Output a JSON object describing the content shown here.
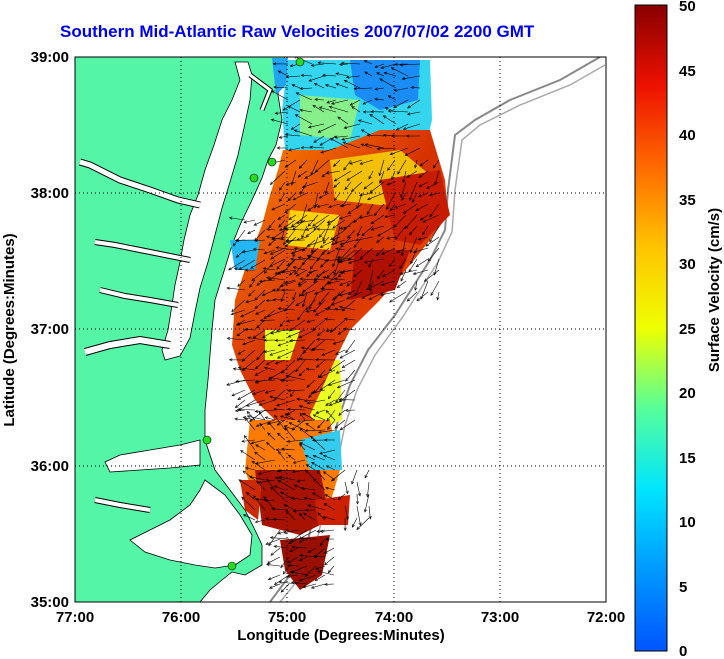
{
  "title": "Southern Mid-Atlantic Raw Velocities 2007/07/02 2200 GMT",
  "x_axis": {
    "label": "Longitude (Degrees:Minutes)",
    "ticks": [
      "77:00",
      "76:00",
      "75:00",
      "74:00",
      "73:00",
      "72:00"
    ]
  },
  "y_axis": {
    "label": "Latitude (Degrees:Minutes)",
    "ticks": [
      "39:00",
      "38:00",
      "37:00",
      "36:00",
      "35:00"
    ]
  },
  "colorbar": {
    "label": "Surface Velocity (cm/s)",
    "ticks": [
      "50",
      "45",
      "40",
      "35",
      "30",
      "25",
      "20",
      "15",
      "10",
      "5",
      "0"
    ],
    "min": 0,
    "max": 50,
    "colormap": "jet"
  },
  "colors": {
    "land": "#55f5a8",
    "ocean": "#ffffff",
    "title": "#0000ee",
    "vectors": "#000000",
    "radar_sites": "#22dd22"
  },
  "grid": "dotted"
}
